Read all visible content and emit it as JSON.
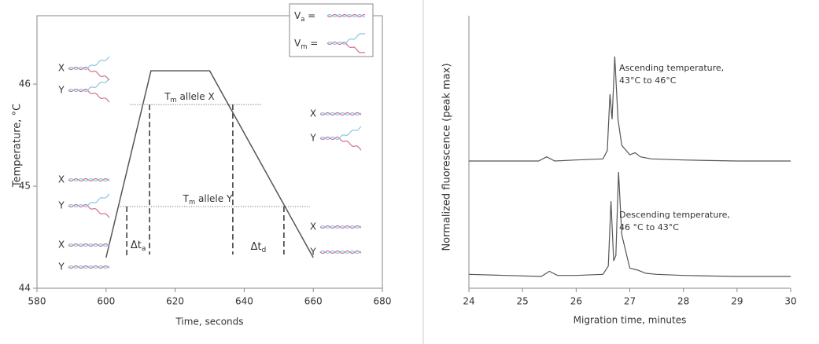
{
  "chart_data": [
    {
      "type": "line",
      "x_label": "Time, seconds",
      "y_label": "Temperature, °C",
      "x": [
        600,
        613,
        630,
        660
      ],
      "values": [
        44.3,
        46.13,
        46.13,
        44.3
      ],
      "color": "#555555",
      "xlim": [
        580,
        680
      ],
      "ylim": [
        44,
        46.67
      ],
      "xticks": [
        580,
        600,
        620,
        640,
        660,
        680
      ],
      "yticks": [
        44,
        45,
        46
      ],
      "reference_lines": [
        {
          "main": "T",
          "sub": "m",
          "after": " allele X",
          "y": 45.8,
          "x": [
            607,
            645
          ]
        },
        {
          "main": "T",
          "sub": "m",
          "after": " allele Y",
          "y": 44.8,
          "x": [
            603.5,
            659
          ]
        }
      ],
      "markers": [
        {
          "x": 606,
          "y": [
            44.8,
            44.3
          ]
        },
        {
          "x": 612.6,
          "y": [
            45.8,
            44.33
          ]
        },
        {
          "x": 636.7,
          "y": [
            45.8,
            44.33
          ]
        },
        {
          "x": 651.5,
          "y": [
            44.8,
            44.33
          ]
        }
      ],
      "interval_labels": [
        {
          "main": "Δt",
          "sub": "a"
        },
        {
          "main": "Δt",
          "sub": "d"
        }
      ],
      "legend": [
        {
          "main": "V",
          "sub": "a",
          "after": " ="
        },
        {
          "main": "V",
          "sub": "m",
          "after": " ="
        }
      ],
      "strand_labels": [
        "X",
        "Y",
        "X",
        "Y",
        "X",
        "Y",
        "X",
        "Y",
        "X",
        "Y"
      ]
    },
    {
      "type": "trace",
      "x_label": "Migration time, minutes",
      "y_label": "Normalized  fluorescence  (peak max)",
      "xlim": [
        24,
        30
      ],
      "xticks": [
        24,
        25,
        26,
        27,
        28,
        29,
        30
      ],
      "series": [
        {
          "label": [
            "Ascending temperature,",
            "43°C to 46°C"
          ],
          "color": "#555555",
          "x": [
            24,
            25.3,
            25.45,
            25.6,
            26.0,
            26.5,
            26.58,
            26.63,
            26.67,
            26.72,
            26.78,
            26.85,
            27.0,
            27.1,
            27.2,
            27.4,
            28,
            29,
            30
          ],
          "values": [
            0,
            0,
            0.04,
            0,
            0.01,
            0.02,
            0.1,
            0.64,
            0.4,
            1.0,
            0.4,
            0.15,
            0.06,
            0.08,
            0.04,
            0.02,
            0.01,
            0,
            0
          ]
        },
        {
          "label": [
            "Descending temperature,",
            "46 °C to 43°C"
          ],
          "color": "#555555",
          "x": [
            24,
            25.35,
            25.5,
            25.65,
            26.0,
            26.5,
            26.6,
            26.65,
            26.7,
            26.74,
            26.79,
            26.85,
            27.0,
            27.15,
            27.3,
            27.5,
            28,
            29,
            30
          ],
          "values": [
            0.02,
            0,
            0.05,
            0.01,
            0.01,
            0.02,
            0.1,
            0.72,
            0.15,
            0.2,
            1.0,
            0.4,
            0.08,
            0.06,
            0.03,
            0.02,
            0.01,
            0,
            0
          ]
        }
      ]
    }
  ]
}
